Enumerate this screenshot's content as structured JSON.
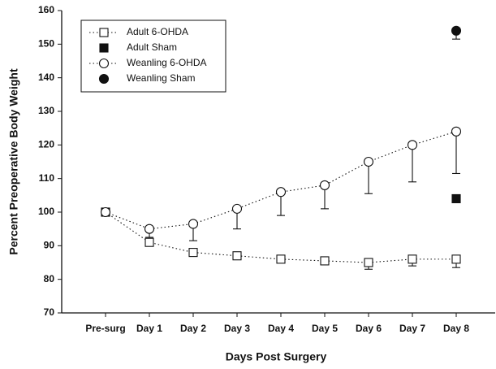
{
  "chart_data": {
    "type": "line",
    "xlabel": "Days Post Surgery",
    "ylabel": "Percent Preoperative Body Weight",
    "categories": [
      "Pre-surg",
      "Day 1",
      "Day 2",
      "Day 3",
      "Day 4",
      "Day 5",
      "Day 6",
      "Day 7",
      "Day 8"
    ],
    "ylim": [
      70,
      160
    ],
    "yticks": [
      70,
      80,
      90,
      100,
      110,
      120,
      130,
      140,
      150,
      160
    ],
    "legend": "top-left",
    "series": [
      {
        "name": "Adult 6-OHDA",
        "color": "#111111",
        "marker": "square-open",
        "linestyle": "dotted",
        "values": [
          100,
          91,
          88,
          87,
          86,
          85.5,
          85,
          86,
          86
        ],
        "errors": [
          0,
          1,
          0.5,
          0.5,
          0.5,
          1,
          2,
          2,
          2.5
        ]
      },
      {
        "name": "Adult Sham",
        "color": "#111111",
        "marker": "square-filled",
        "linestyle": "none",
        "values": [
          100,
          null,
          null,
          null,
          null,
          null,
          null,
          null,
          104
        ],
        "errors": [
          0,
          null,
          null,
          null,
          null,
          null,
          null,
          null,
          1
        ]
      },
      {
        "name": "Weanling 6-OHDA",
        "color": "#111111",
        "marker": "circle-open",
        "linestyle": "dotted",
        "values": [
          100,
          95,
          96.5,
          101,
          106,
          108,
          115,
          120,
          124
        ],
        "errors": [
          0,
          2.5,
          5,
          6,
          7,
          7,
          9.5,
          11,
          12.5
        ]
      },
      {
        "name": "Weanling Sham",
        "color": "#111111",
        "marker": "circle-filled",
        "linestyle": "none",
        "values": [
          null,
          null,
          null,
          null,
          null,
          null,
          null,
          null,
          154
        ],
        "errors": [
          null,
          null,
          null,
          null,
          null,
          null,
          null,
          null,
          2.5
        ]
      }
    ]
  }
}
